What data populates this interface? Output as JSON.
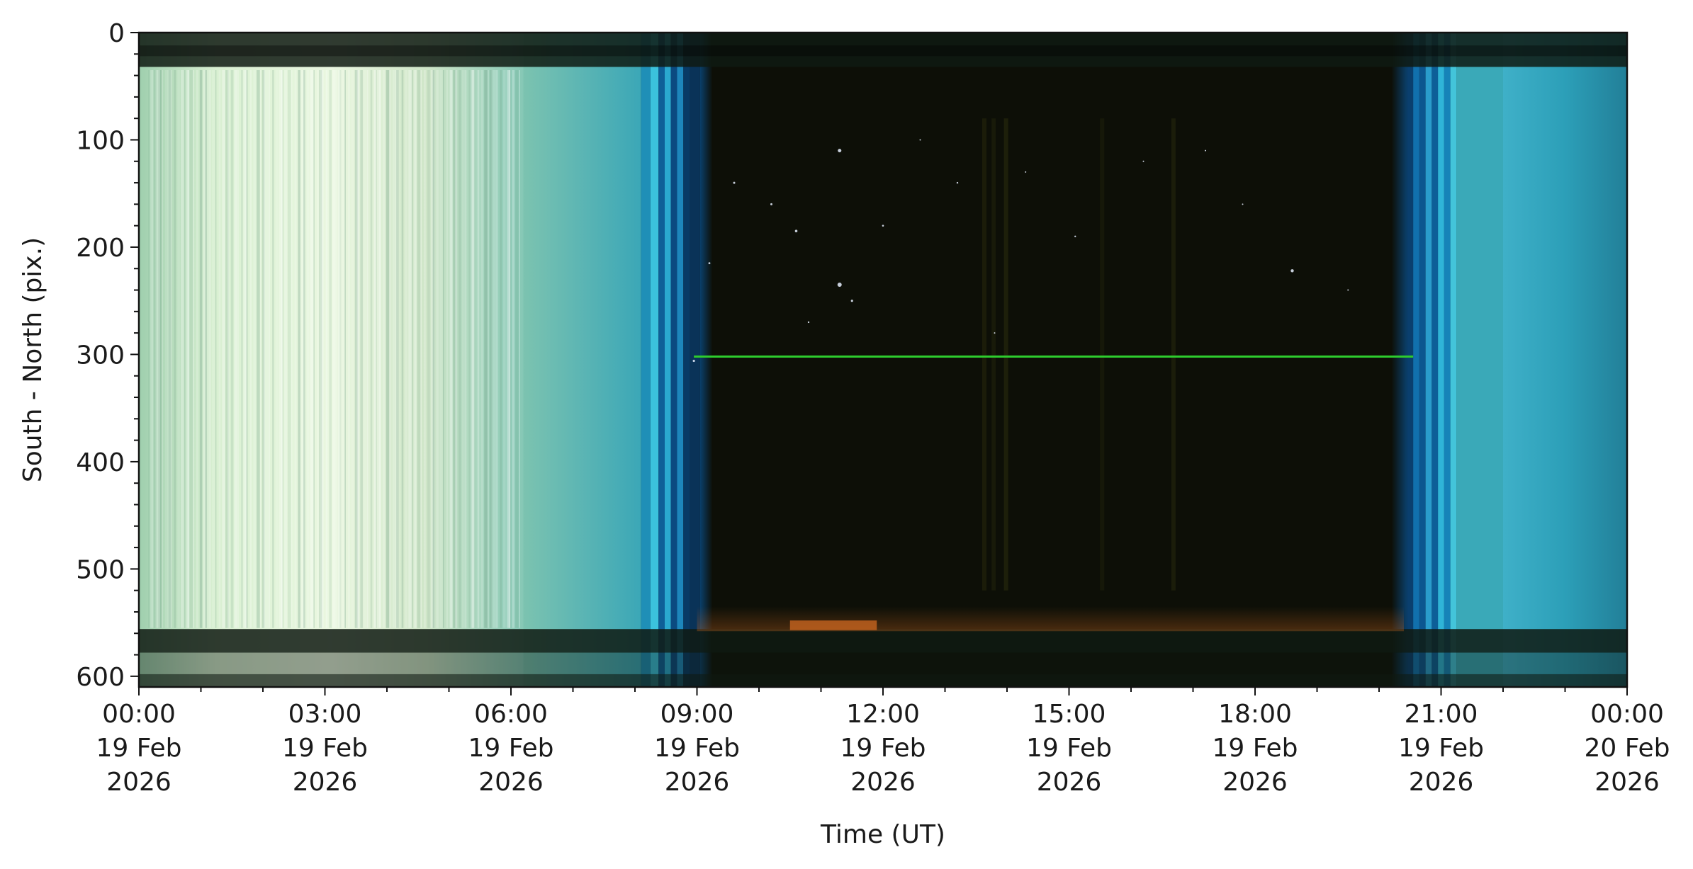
{
  "chart_data": {
    "type": "heatmap",
    "xlabel": "Time (UT)",
    "ylabel": "South - North (pix.)",
    "x_range": [
      "2026-02-19T00:00",
      "2026-02-20T00:00"
    ],
    "y_range": [
      0,
      610
    ],
    "y_inverted": true,
    "grid": false,
    "x_ticks": [
      {
        "value": "2026-02-19T00:00",
        "lines": [
          "00:00",
          "19 Feb",
          "2026"
        ]
      },
      {
        "value": "2026-02-19T03:00",
        "lines": [
          "03:00",
          "19 Feb",
          "2026"
        ]
      },
      {
        "value": "2026-02-19T06:00",
        "lines": [
          "06:00",
          "19 Feb",
          "2026"
        ]
      },
      {
        "value": "2026-02-19T09:00",
        "lines": [
          "09:00",
          "19 Feb",
          "2026"
        ]
      },
      {
        "value": "2026-02-19T12:00",
        "lines": [
          "12:00",
          "19 Feb",
          "2026"
        ]
      },
      {
        "value": "2026-02-19T15:00",
        "lines": [
          "15:00",
          "19 Feb",
          "2026"
        ]
      },
      {
        "value": "2026-02-19T18:00",
        "lines": [
          "18:00",
          "19 Feb",
          "2026"
        ]
      },
      {
        "value": "2026-02-19T21:00",
        "lines": [
          "21:00",
          "19 Feb",
          "2026"
        ]
      },
      {
        "value": "2026-02-20T00:00",
        "lines": [
          "00:00",
          "20 Feb",
          "2026"
        ]
      }
    ],
    "y_ticks": [
      0,
      100,
      200,
      300,
      400,
      500,
      600
    ],
    "colors": {
      "day_sky": "#cfe9cf",
      "twilight_cyan": "#3ab8d0",
      "twilight_blue": "#0a4f8a",
      "night_sky": "#0d0f07",
      "green_line": "#2ecc2e",
      "horizon_glow": "#c7641f",
      "band_dark": "#0f1a12"
    }
  }
}
